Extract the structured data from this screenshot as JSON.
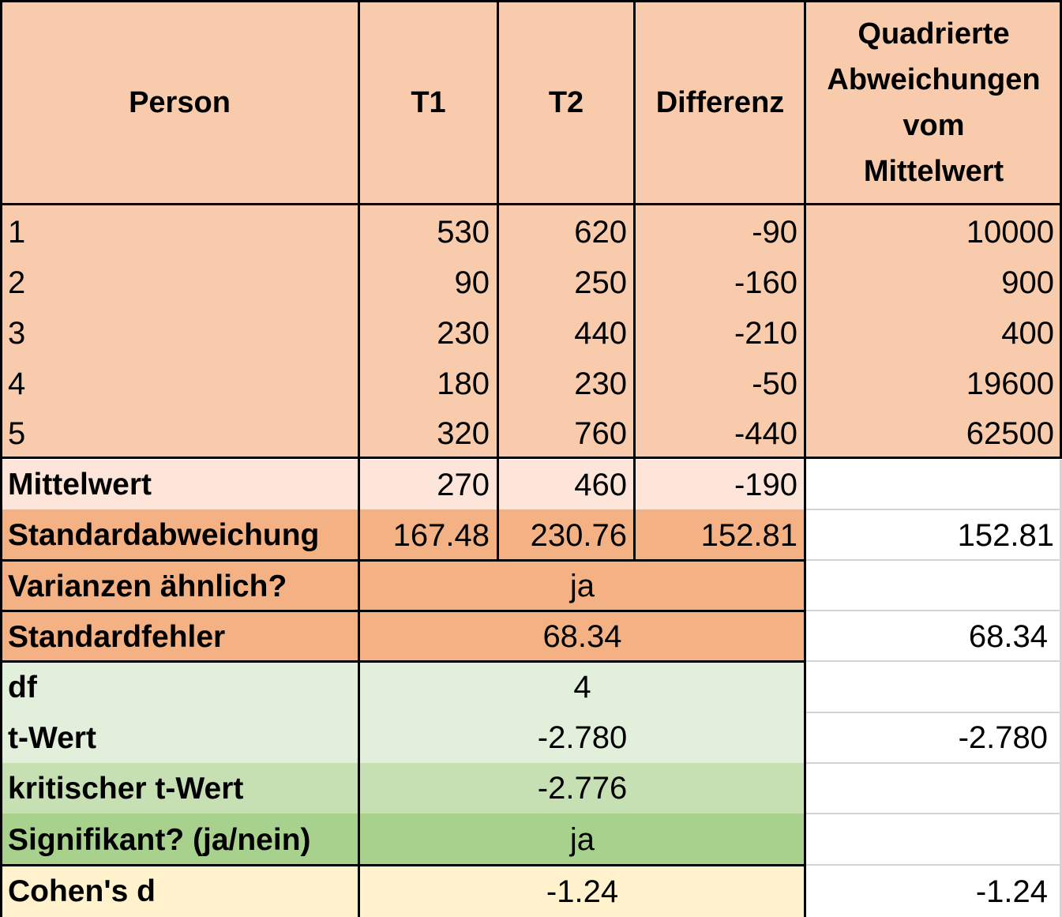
{
  "headers": {
    "person": "Person",
    "t1": "T1",
    "t2": "T2",
    "diff": "Differenz",
    "sq_line1": "Quadrierte",
    "sq_line2": "Abweichungen",
    "sq_line3": "vom",
    "sq_line4": "Mittelwert"
  },
  "rows": [
    {
      "person": "1",
      "t1": "530",
      "t2": "620",
      "diff": "-90",
      "sq": "10000"
    },
    {
      "person": "2",
      "t1": "90",
      "t2": "250",
      "diff": "-160",
      "sq": "900"
    },
    {
      "person": "3",
      "t1": "230",
      "t2": "440",
      "diff": "-210",
      "sq": "400"
    },
    {
      "person": "4",
      "t1": "180",
      "t2": "230",
      "diff": "-50",
      "sq": "19600"
    },
    {
      "person": "5",
      "t1": "320",
      "t2": "760",
      "diff": "-440",
      "sq": "62500"
    }
  ],
  "stats": {
    "mean_label": "Mittelwert",
    "mean_t1": "270",
    "mean_t2": "460",
    "mean_diff": "-190",
    "sd_label": "Standardabweichung",
    "sd_t1": "167.48",
    "sd_t2": "230.76",
    "sd_diff": "152.81",
    "sd_side": "152.81",
    "var_label": "Varianzen ähnlich?",
    "var_value": "ja",
    "se_label": "Standardfehler",
    "se_value": "68.34",
    "se_side": "68.34",
    "df_label": "df",
    "df_value": "4",
    "t_label": "t-Wert",
    "t_value": "-2.780",
    "t_side": "-2.780",
    "tcrit_label": "kritischer t-Wert",
    "tcrit_value": "-2.776",
    "sig_label": "Signifikant? (ja/nein)",
    "sig_value": "ja",
    "d_label": "Cohen's d",
    "d_value": "-1.24",
    "d_side": "-1.24"
  },
  "colors": {
    "peach": "#f8cbad",
    "light_peach": "#fde5da",
    "orange": "#f4b183",
    "green_light": "#e2efda",
    "green_mid": "#c6e0b4",
    "green_dark": "#a9d18e",
    "yellow": "#fff2cc"
  }
}
